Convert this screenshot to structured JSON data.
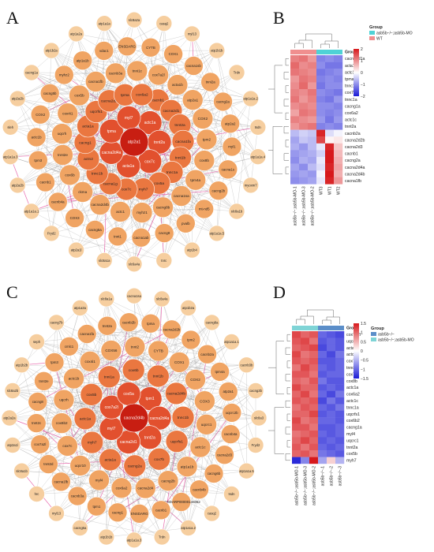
{
  "panels": {
    "a": {
      "letter": "A"
    },
    "b": {
      "letter": "B"
    },
    "c": {
      "letter": "C"
    },
    "d": {
      "letter": "D"
    }
  },
  "colors": {
    "node_outer": "#f6ce9f",
    "node_mid": "#f0a463",
    "node_inner": "#ea7740",
    "node_core": "#e2502e",
    "node_hub": "#c81e12",
    "edge": "#8a8a8a",
    "edge_highlight": "#e2459a",
    "heat_high": "#d7191c",
    "heat_mid": "#ffffff",
    "heat_low": "#1b1bd6",
    "group_a": "#4fd2d6",
    "group_b": "#f08f8f",
    "group_c": "#5b8ec9",
    "group_d": "#7fd4d6"
  },
  "network_a": {
    "rings": [
      [
        "slc8a2a",
        "casq2",
        "myl13",
        "atp1b1b",
        "Trdn",
        "atp1a1a.2",
        "tsdn",
        "atp1a1a.4",
        "myoxm7",
        "slc8a1b",
        "atp1a1a.5",
        "atp1b4",
        "tnrc",
        "slc6a4a",
        "slc8a1a",
        "atp2a1l",
        "Fryd2",
        "atp1a1a.1",
        "atp2a2b",
        "atp1a1a.3",
        "sleh",
        "atp2a2b",
        "cacng1a",
        "atp1b2a",
        "atp1a2a",
        "atp1a1a"
      ],
      [
        "CYTB",
        "COX1",
        "cacna1sb",
        "tnni2a",
        "cacng2a",
        "atp2a2",
        "myl1",
        "cacna1s",
        "cacng2b",
        "mt-nd5",
        "pvalb",
        "cacng8",
        "cacna1ab",
        "tnnt1",
        "cacng5a",
        "COX3",
        "cacnb4a",
        "cacnb1",
        "tpm3",
        "actc1b",
        "COX2",
        "cacng5b",
        "myhz2",
        "atp1a1b",
        "vdac1",
        "ENSDARG"
      ],
      [
        "cox7a2l",
        "acta1b",
        "atp2a1",
        "COX2",
        "tpm2",
        "cox8b",
        "tpm4a",
        "cacna1sa",
        "cacng8b",
        "myhz1",
        "actc1",
        "cacna2d4b",
        "ckma",
        "cox6b",
        "tnnt2e",
        "uqcrh",
        "cox4i1",
        "cox5b",
        "cacna1fb",
        "cacnb3a",
        "tnni1c"
      ],
      [
        "cacnb1",
        "cacna2d1",
        "tnnt2a",
        "cacna1fa",
        "tnnt1b",
        "tnnc1a",
        "cox5a",
        "myh7",
        "cox7c",
        "cacna1g",
        "tnnc1b",
        "actn2",
        "cacng1",
        "acta1a",
        "uqcrfs1",
        "cacna2d2",
        "tpma",
        "cox6a2"
      ],
      [
        "actc1a",
        "tnnt2a",
        "cox7c",
        "acta1a",
        "cacna2d4a",
        "tpma",
        "myl7"
      ],
      [
        "atp2a1"
      ]
    ]
  },
  "network_c": {
    "rings": [
      [
        "cacna1sa",
        "slc8a4a",
        "atp1b2a",
        "cacng8a",
        "atp1a1a.1",
        "cacnb3b",
        "cacng3b",
        "slc8a3",
        "Fryd2",
        "atp1a1a.5",
        "tsdn",
        "casq2",
        "atp1a1a.2",
        "Trdn",
        "atp1a1a.3",
        "atp1b1b",
        "cacng5a",
        "myl13",
        "hrc",
        "slc8a1b",
        "atp2a1l",
        "atp2a2a",
        "slc8a2b",
        "atp1b2b",
        "seph",
        "cacng7b",
        "atp1a3a",
        "slc8a1a"
      ],
      [
        "tpma",
        "cacna2d2b",
        "tpm2",
        "cacnb2a",
        "tpm4a",
        "atp2a1",
        "uqcrc2b",
        "cacnb4a",
        "cacna2d3",
        "cacng6b",
        "cacnb4b",
        "ENSDARP00000146062",
        "cacnb1",
        "ENSDARG",
        "cacng1",
        "tpm1",
        "cacnb3a",
        "cacna1fb",
        "tnnt2d",
        "cox7a2l",
        "tnnt2c",
        "cacng8",
        "tnnt2e",
        "tpm3",
        "cmlc1",
        "cacna1fa",
        "tnnt2a",
        "cacnb2b"
      ],
      [
        "CYTB",
        "COX1",
        "COX2",
        "COX3",
        "uqcrc1",
        "actc1c",
        "atp1a1b",
        "cacng2b",
        "cacna2d4",
        "cox6a2",
        "myl4",
        "uqcr10",
        "cox7c",
        "cox6b2",
        "uqcrh",
        "actc1b",
        "cox4i1",
        "COX56",
        "tnnt2"
      ],
      [
        "tnnt1b",
        "cacna2d4b",
        "tnnc1b",
        "uqcrfs1",
        "cox7b",
        "cacng2a",
        "acta1a",
        "myh7",
        "actc1a",
        "cox5b",
        "tnni1a",
        "cox6b"
      ],
      [
        "tpm1",
        "cacna2d4a",
        "tnnt2a",
        "cacna2d1",
        "myl7",
        "cox7a2l",
        "cox5a"
      ],
      [
        "cacna2d4b"
      ]
    ]
  },
  "heatmap_b": {
    "legend_title": "Group",
    "legend_items": [
      "asb5b−/−;asb5b-MO",
      "WT"
    ],
    "scale_ticks": [
      "2",
      "1",
      "0",
      "−1",
      "−2"
    ],
    "rows": [
      "cacna2d1a",
      "acta1a",
      "actc1b",
      "tpma",
      "tnnc1b",
      "cox7c",
      "tnnc1a",
      "cacng1a",
      "cox6a2",
      "actc1c",
      "tnnt2a",
      "cacnb2a",
      "cacna2d2b",
      "cacna2d3",
      "cacnb1",
      "cacng2a",
      "cacna2d4a",
      "cacna2d4b",
      "cacna1fb"
    ],
    "columns": [
      "asb5b−/−;asb5b-MO-1",
      "asb5b−/−;asb5b-MO-3",
      "asb5b−/−;asb5b-MO-2",
      "WT3",
      "WT1",
      "WT2"
    ],
    "group_row_label": "Group",
    "values": [
      [
        1.1,
        1.2,
        0.9,
        -1.1,
        -1.0,
        -1.1
      ],
      [
        1.3,
        1.0,
        1.1,
        -1.0,
        -1.2,
        -1.2
      ],
      [
        1.2,
        1.1,
        1.0,
        -1.2,
        -1.1,
        -1.0
      ],
      [
        0.9,
        1.2,
        1.1,
        -1.1,
        -1.0,
        -1.1
      ],
      [
        1.0,
        1.3,
        0.9,
        -1.2,
        -1.0,
        -1.0
      ],
      [
        1.1,
        1.0,
        1.2,
        -1.0,
        -1.1,
        -1.2
      ],
      [
        1.2,
        0.9,
        1.1,
        -1.1,
        -1.2,
        -0.9
      ],
      [
        1.0,
        1.1,
        1.0,
        -1.0,
        -1.0,
        -1.1
      ],
      [
        0.8,
        1.2,
        1.1,
        -1.0,
        -1.1,
        -1.0
      ],
      [
        1.1,
        1.0,
        0.9,
        -0.9,
        -1.2,
        -0.9
      ],
      [
        0.9,
        1.1,
        1.2,
        -1.1,
        -1.0,
        -1.1
      ],
      [
        -0.6,
        -0.4,
        -0.5,
        1.9,
        -0.3,
        -0.1
      ],
      [
        -0.8,
        -0.5,
        -0.6,
        1.6,
        0.1,
        0.2
      ],
      [
        -0.7,
        -0.9,
        -0.6,
        -0.2,
        1.9,
        0.5
      ],
      [
        -0.9,
        -0.8,
        -0.7,
        -0.4,
        2.0,
        0.6
      ],
      [
        -1.0,
        -0.7,
        -0.8,
        -0.2,
        2.0,
        0.7
      ],
      [
        -0.8,
        -1.0,
        -0.6,
        -0.3,
        1.9,
        0.8
      ],
      [
        -0.9,
        -0.8,
        -0.9,
        -0.1,
        2.0,
        0.7
      ],
      [
        -1.0,
        -0.9,
        -0.8,
        -0.2,
        1.9,
        0.9
      ]
    ],
    "group_colors": [
      "group_b",
      "group_b",
      "group_b",
      "group_a",
      "group_a",
      "group_a"
    ]
  },
  "heatmap_d": {
    "legend_title": "Group",
    "legend_items": [
      "asb5b−/−",
      "asb5b−/−;asb5b-MO"
    ],
    "scale_ticks": [
      "1.5",
      "1",
      "0.5",
      "0",
      "−0.5",
      "−1",
      "−1.5"
    ],
    "rows": [
      "cox7a2l",
      "uqcr10",
      "acta1a",
      "actc1b",
      "cox7c",
      "tnnc1b",
      "cox7b",
      "cox8b",
      "actc1a",
      "cox6a2",
      "actc1c",
      "tnnc1a",
      "uqcrfs1",
      "cox6b2",
      "cacng1a",
      "myl4",
      "uqcrc1",
      "tnnt2a",
      "cox5b",
      "myh7"
    ],
    "columns": [
      "asb5b−/−;asb5b-MO-1",
      "asb5b−/−;asb5b-MO-3",
      "asb5b−/−;asb5b-MO-2",
      "asb5b−/−-1",
      "asb5b−/−-2",
      "asb5b−/−-3"
    ],
    "group_row_label": "Group",
    "values": [
      [
        1.2,
        1.0,
        1.1,
        -1.0,
        -1.1,
        -1.2
      ],
      [
        1.1,
        1.2,
        0.9,
        -1.1,
        -1.0,
        -1.1
      ],
      [
        1.0,
        1.1,
        1.2,
        -1.2,
        -1.0,
        -1.1
      ],
      [
        1.2,
        0.9,
        1.0,
        -1.0,
        -1.2,
        -0.9
      ],
      [
        1.1,
        1.0,
        1.1,
        -1.1,
        -1.1,
        -1.0
      ],
      [
        0.9,
        1.2,
        1.0,
        -1.0,
        -1.1,
        -1.0
      ],
      [
        1.1,
        1.1,
        0.9,
        -1.1,
        -1.0,
        -1.0
      ],
      [
        1.0,
        0.9,
        1.1,
        -0.9,
        -1.1,
        -1.1
      ],
      [
        1.2,
        1.0,
        1.0,
        -1.1,
        -1.0,
        -1.1
      ],
      [
        1.0,
        1.2,
        0.9,
        -1.0,
        -1.2,
        -0.9
      ],
      [
        1.1,
        1.0,
        1.1,
        -1.2,
        -0.9,
        -1.1
      ],
      [
        0.9,
        1.1,
        1.0,
        -1.0,
        -1.1,
        -0.9
      ],
      [
        1.0,
        1.0,
        1.2,
        -1.1,
        -1.0,
        -1.1
      ],
      [
        1.2,
        0.9,
        1.0,
        -1.0,
        -1.0,
        -1.1
      ],
      [
        1.1,
        1.1,
        0.9,
        -1.1,
        -1.1,
        -1.0
      ],
      [
        0.9,
        1.0,
        1.1,
        -1.0,
        -1.1,
        -1.0
      ],
      [
        1.0,
        1.2,
        1.0,
        -1.1,
        -1.0,
        -1.1
      ],
      [
        1.1,
        0.9,
        1.1,
        -1.0,
        -1.1,
        -1.0
      ],
      [
        1.0,
        1.1,
        0.9,
        -0.9,
        -1.0,
        -1.1
      ],
      [
        -1.4,
        -0.8,
        1.6,
        -0.6,
        0.3,
        -0.5
      ]
    ],
    "group_colors": [
      "group_d",
      "group_d",
      "group_d",
      "group_c",
      "group_c",
      "group_c"
    ]
  }
}
